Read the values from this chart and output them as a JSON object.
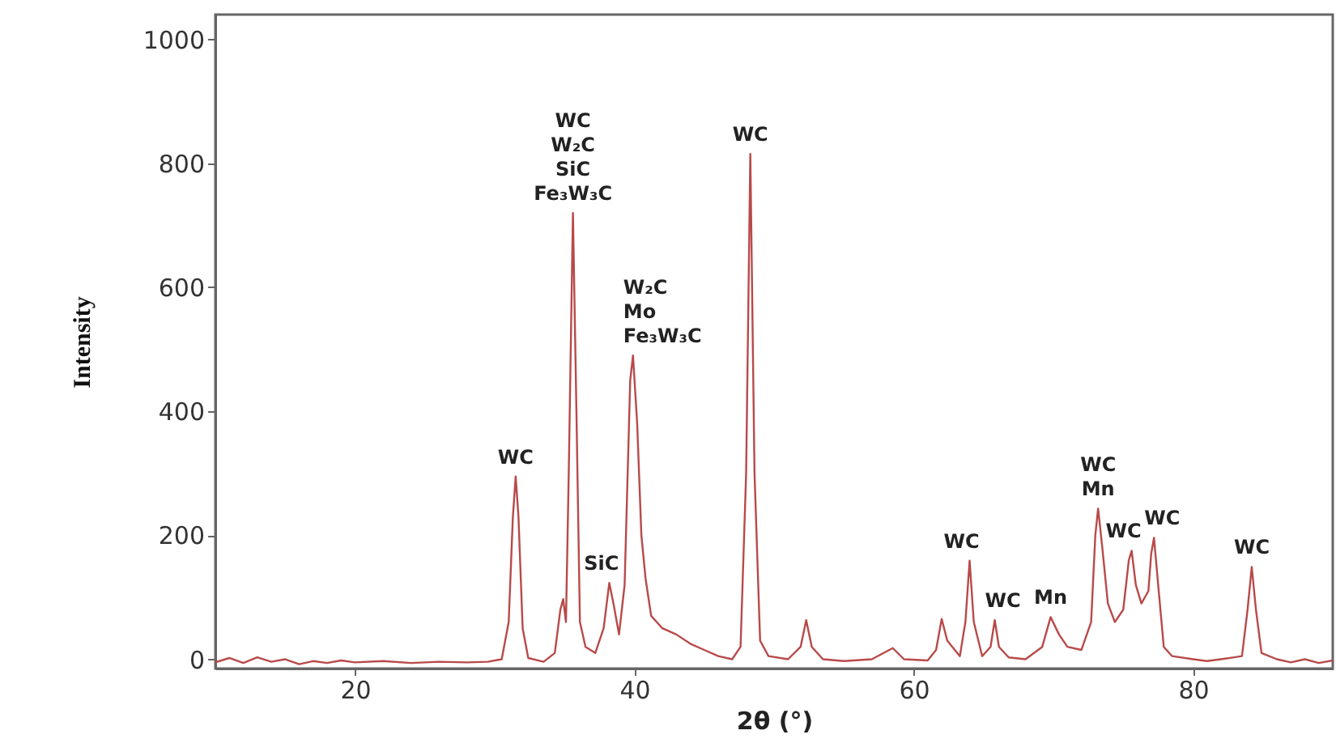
{
  "chart_data": {
    "type": "line",
    "xlabel": "2θ (°)",
    "ylabel": "Intensity",
    "xlim": [
      10,
      90
    ],
    "ylim": [
      -15,
      1040
    ],
    "xticks": [
      20,
      40,
      60,
      80
    ],
    "yticks": [
      0,
      200,
      400,
      600,
      800,
      1000
    ],
    "grid": false,
    "marker": "none",
    "line_style": "solid",
    "series": [
      {
        "color": "#b84a4a",
        "x": [
          10,
          11,
          12,
          13,
          14,
          15,
          16,
          17,
          18,
          19,
          20,
          22,
          24,
          26,
          28,
          29.5,
          30.5,
          31.0,
          31.3,
          31.5,
          31.7,
          32.0,
          32.4,
          33.5,
          34.3,
          34.7,
          34.9,
          35.1,
          35.3,
          35.6,
          35.85,
          36.1,
          36.5,
          37.2,
          37.8,
          38.2,
          38.5,
          38.9,
          39.3,
          39.7,
          39.9,
          40.2,
          40.5,
          40.8,
          41.2,
          42,
          43,
          44,
          45,
          46,
          47,
          47.6,
          48.0,
          48.3,
          48.6,
          49,
          49.6,
          51,
          51.9,
          52.3,
          52.7,
          53.5,
          55,
          57,
          58.5,
          59.3,
          61,
          61.6,
          62.0,
          62.4,
          63.3,
          63.7,
          64.0,
          64.3,
          64.9,
          65.5,
          65.8,
          66.1,
          66.8,
          68,
          69.2,
          69.8,
          70.4,
          71,
          72,
          72.7,
          73.0,
          73.2,
          73.5,
          73.9,
          74.4,
          75.0,
          75.4,
          75.6,
          75.9,
          76.3,
          76.8,
          77.0,
          77.2,
          77.5,
          77.9,
          78.5,
          80,
          81,
          82,
          83.5,
          83.9,
          84.2,
          84.5,
          84.9,
          86,
          87,
          88,
          89,
          90
        ],
        "values": [
          -5,
          2,
          -6,
          3,
          -4,
          0,
          -8,
          -3,
          -6,
          -2,
          -5,
          -3,
          -6,
          -4,
          -5,
          -4,
          0,
          60,
          230,
          295,
          230,
          50,
          2,
          -4,
          10,
          80,
          97,
          60,
          300,
          720,
          400,
          60,
          20,
          10,
          50,
          123,
          90,
          40,
          120,
          450,
          490,
          380,
          200,
          130,
          70,
          50,
          40,
          25,
          15,
          5,
          0,
          20,
          300,
          815,
          300,
          30,
          5,
          0,
          20,
          63,
          20,
          0,
          -3,
          0,
          18,
          0,
          -2,
          15,
          65,
          30,
          5,
          60,
          159,
          60,
          5,
          20,
          63,
          20,
          3,
          0,
          20,
          68,
          40,
          20,
          15,
          60,
          200,
          243,
          180,
          90,
          60,
          80,
          160,
          175,
          120,
          90,
          110,
          170,
          196,
          120,
          20,
          5,
          0,
          -3,
          0,
          5,
          80,
          149,
          80,
          10,
          0,
          -5,
          0,
          -6,
          -2
        ]
      }
    ],
    "annotations": [
      {
        "text": "WC",
        "x": 31.5,
        "y": 295
      },
      {
        "text": "WC\nW₂C\nSiC\nFe₃W₃C",
        "x": 35.6,
        "y": 720
      },
      {
        "text": "SiC",
        "x": 38.2,
        "y": 123
      },
      {
        "text": "W₂C\nMo\nFe₃W₃C",
        "x": 39.9,
        "y": 490
      },
      {
        "text": "WC",
        "x": 48.3,
        "y": 815
      },
      {
        "text": "WC",
        "x": 64.0,
        "y": 159
      },
      {
        "text": "WC",
        "x": 65.8,
        "y": 63
      },
      {
        "text": "Mn",
        "x": 69.8,
        "y": 68
      },
      {
        "text": "WC\nMn",
        "x": 73.2,
        "y": 243
      },
      {
        "text": "WC",
        "x": 75.6,
        "y": 175
      },
      {
        "text": "WC",
        "x": 77.2,
        "y": 196
      },
      {
        "text": "WC",
        "x": 84.2,
        "y": 149
      }
    ]
  }
}
